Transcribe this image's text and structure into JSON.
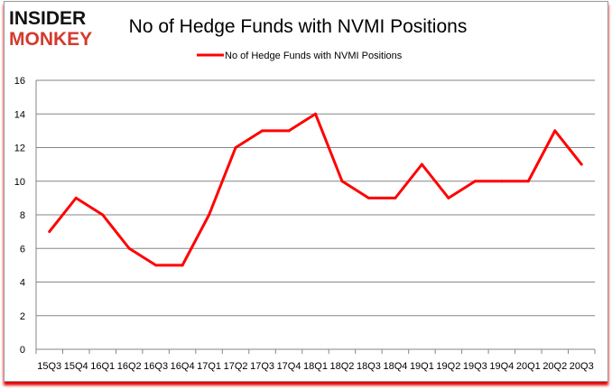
{
  "logo": {
    "line1": "INSIDER",
    "line2": "MONKEY"
  },
  "chart_data": {
    "type": "line",
    "title": "No of Hedge Funds with NVMI Positions",
    "categories": [
      "15Q3",
      "15Q4",
      "16Q1",
      "16Q2",
      "16Q3",
      "16Q4",
      "17Q1",
      "17Q2",
      "17Q3",
      "17Q4",
      "18Q1",
      "18Q2",
      "18Q3",
      "18Q4",
      "19Q1",
      "19Q2",
      "19Q3",
      "19Q4",
      "20Q1",
      "20Q2",
      "20Q3"
    ],
    "series": [
      {
        "name": "No of Hedge Funds with NVMI Positions",
        "values": [
          7,
          9,
          8,
          6,
          5,
          5,
          8,
          12,
          13,
          13,
          14,
          10,
          9,
          9,
          11,
          9,
          10,
          10,
          10,
          13,
          11
        ],
        "color": "#ff0000"
      }
    ],
    "ylim": [
      0,
      16
    ],
    "yticks": [
      0,
      2,
      4,
      6,
      8,
      10,
      12,
      14,
      16
    ],
    "grid": true,
    "legend": "top-center"
  }
}
